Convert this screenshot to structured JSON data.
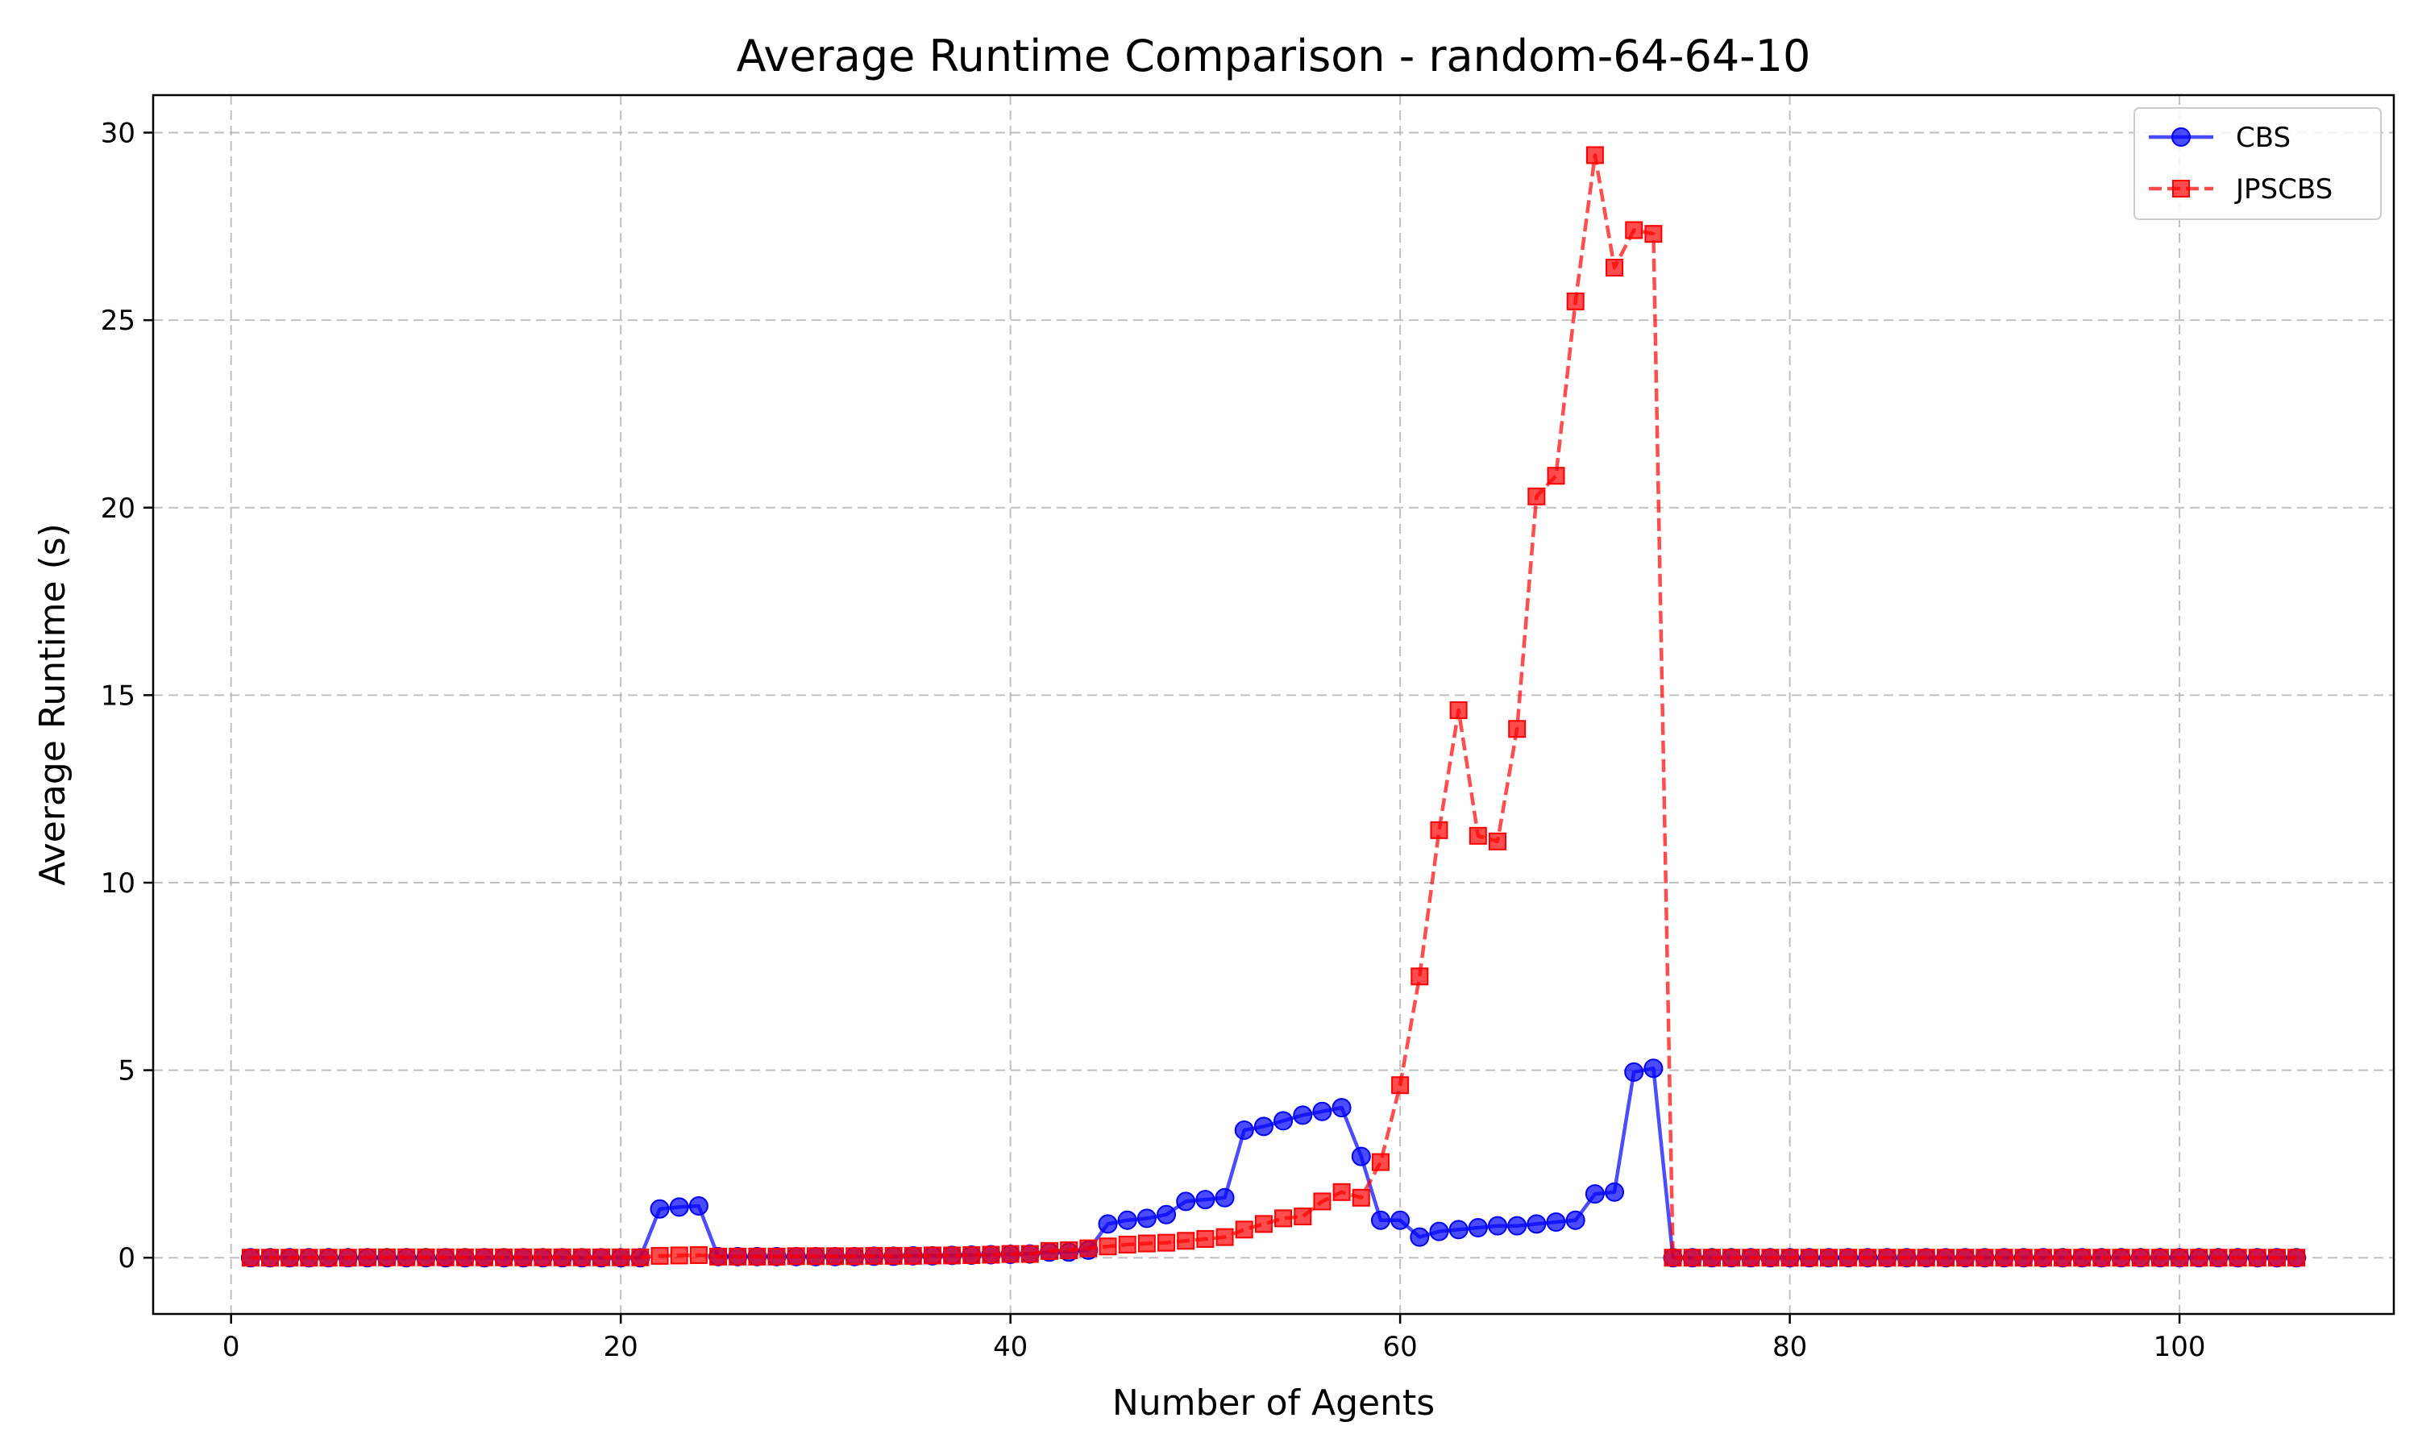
{
  "chart_data": {
    "type": "line",
    "title": "Average Runtime Comparison - random-64-64-10",
    "xlabel": "Number of Agents",
    "ylabel": "Average Runtime (s)",
    "xlim": [
      -4,
      111
    ],
    "ylim": [
      -1.5,
      31
    ],
    "xticks": [
      0,
      20,
      40,
      60,
      80,
      100
    ],
    "yticks": [
      0,
      5,
      10,
      15,
      20,
      25,
      30
    ],
    "grid": true,
    "legend_position": "top-right",
    "series": [
      {
        "name": "CBS",
        "color": "#0000ff",
        "style": "solid",
        "marker": "circle",
        "x": [
          1,
          2,
          3,
          4,
          5,
          6,
          7,
          8,
          9,
          10,
          11,
          12,
          13,
          14,
          15,
          16,
          17,
          18,
          19,
          20,
          21,
          22,
          23,
          24,
          25,
          26,
          27,
          28,
          29,
          30,
          31,
          32,
          33,
          34,
          35,
          36,
          37,
          38,
          39,
          40,
          41,
          42,
          43,
          44,
          45,
          46,
          47,
          48,
          49,
          50,
          51,
          52,
          53,
          54,
          55,
          56,
          57,
          58,
          59,
          60,
          61,
          62,
          63,
          64,
          65,
          66,
          67,
          68,
          69,
          70,
          71,
          72,
          73,
          74,
          75,
          76,
          77,
          78,
          79,
          80,
          81,
          82,
          83,
          84,
          85,
          86,
          87,
          88,
          89,
          90,
          91,
          92,
          93,
          94,
          95,
          96,
          97,
          98,
          99,
          100,
          101,
          102,
          103,
          104,
          105,
          106
        ],
        "values": [
          0,
          0,
          0,
          0,
          0,
          0,
          0,
          0,
          0,
          0,
          0,
          0,
          0,
          0,
          0,
          0,
          0,
          0,
          0,
          0,
          0,
          1.3,
          1.35,
          1.38,
          0.03,
          0.03,
          0.03,
          0.03,
          0.03,
          0.03,
          0.03,
          0.03,
          0.04,
          0.04,
          0.05,
          0.05,
          0.06,
          0.07,
          0.08,
          0.09,
          0.1,
          0.15,
          0.15,
          0.2,
          0.9,
          1.0,
          1.05,
          1.15,
          1.5,
          1.55,
          1.6,
          3.4,
          3.5,
          3.65,
          3.8,
          3.9,
          4.0,
          2.7,
          1.0,
          1.0,
          0.55,
          0.7,
          0.75,
          0.8,
          0.85,
          0.85,
          0.9,
          0.95,
          1.0,
          1.7,
          1.75,
          4.95,
          5.05,
          0,
          0,
          0,
          0,
          0,
          0,
          0,
          0,
          0,
          0,
          0,
          0,
          0,
          0,
          0,
          0,
          0,
          0,
          0,
          0,
          0,
          0,
          0,
          0,
          0,
          0,
          0,
          0,
          0,
          0,
          0,
          0,
          0
        ]
      },
      {
        "name": "JPSCBS",
        "color": "#ff0000",
        "style": "dashed",
        "marker": "square",
        "x": [
          1,
          2,
          3,
          4,
          5,
          6,
          7,
          8,
          9,
          10,
          11,
          12,
          13,
          14,
          15,
          16,
          17,
          18,
          19,
          20,
          21,
          22,
          23,
          24,
          25,
          26,
          27,
          28,
          29,
          30,
          31,
          32,
          33,
          34,
          35,
          36,
          37,
          38,
          39,
          40,
          41,
          42,
          43,
          44,
          45,
          46,
          47,
          48,
          49,
          50,
          51,
          52,
          53,
          54,
          55,
          56,
          57,
          58,
          59,
          60,
          61,
          62,
          63,
          64,
          65,
          66,
          67,
          68,
          69,
          70,
          71,
          72,
          73,
          74,
          75,
          76,
          77,
          78,
          79,
          80,
          81,
          82,
          83,
          84,
          85,
          86,
          87,
          88,
          89,
          90,
          91,
          92,
          93,
          94,
          95,
          96,
          97,
          98,
          99,
          100,
          101,
          102,
          103,
          104,
          105,
          106
        ],
        "values": [
          0,
          0,
          0,
          0,
          0,
          0,
          0.01,
          0.01,
          0.01,
          0.01,
          0.01,
          0.01,
          0.01,
          0.01,
          0.01,
          0.01,
          0.01,
          0.01,
          0.01,
          0.01,
          0.01,
          0.05,
          0.06,
          0.07,
          0.03,
          0.03,
          0.03,
          0.03,
          0.04,
          0.04,
          0.04,
          0.04,
          0.05,
          0.05,
          0.05,
          0.06,
          0.06,
          0.07,
          0.08,
          0.1,
          0.1,
          0.18,
          0.2,
          0.25,
          0.3,
          0.35,
          0.38,
          0.4,
          0.45,
          0.5,
          0.55,
          0.75,
          0.9,
          1.05,
          1.1,
          1.5,
          1.75,
          1.6,
          2.55,
          4.6,
          7.5,
          11.4,
          14.6,
          11.25,
          11.1,
          14.1,
          20.3,
          20.85,
          25.5,
          29.4,
          26.4,
          27.4,
          27.3,
          0,
          0,
          0,
          0,
          0,
          0,
          0,
          0,
          0,
          0,
          0,
          0,
          0,
          0,
          0,
          0,
          0,
          0,
          0,
          0,
          0,
          0,
          0,
          0,
          0,
          0,
          0,
          0,
          0,
          0,
          0,
          0,
          0
        ]
      }
    ]
  }
}
